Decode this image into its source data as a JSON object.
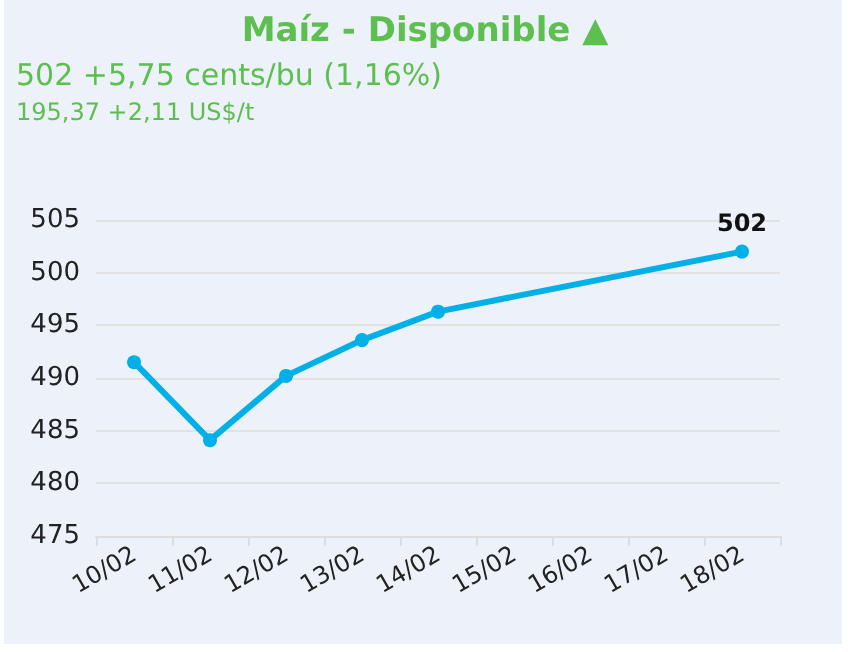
{
  "chart_data": {
    "type": "line",
    "title": "Maíz - Disponible ▲",
    "subtitle": "502 +5,75 cents/bu (1,16%)",
    "annotations": [
      "195,37 +2,11 US$/t"
    ],
    "categories": [
      "10/02",
      "11/02",
      "12/02",
      "13/02",
      "14/02",
      "15/02",
      "16/02",
      "17/02",
      "18/02"
    ],
    "series": [
      {
        "color": "#00b0e6",
        "values": [
          491.5,
          484.1,
          490.2,
          493.6,
          496.3,
          null,
          null,
          null,
          502
        ],
        "value_labels": [
          null,
          null,
          null,
          null,
          null,
          null,
          null,
          null,
          "502"
        ]
      }
    ],
    "ylim": [
      475,
      505
    ],
    "yticks": [
      475,
      480,
      485,
      490,
      495,
      500,
      505
    ],
    "grid": "y",
    "marker": "circle",
    "line_style": "solid"
  }
}
